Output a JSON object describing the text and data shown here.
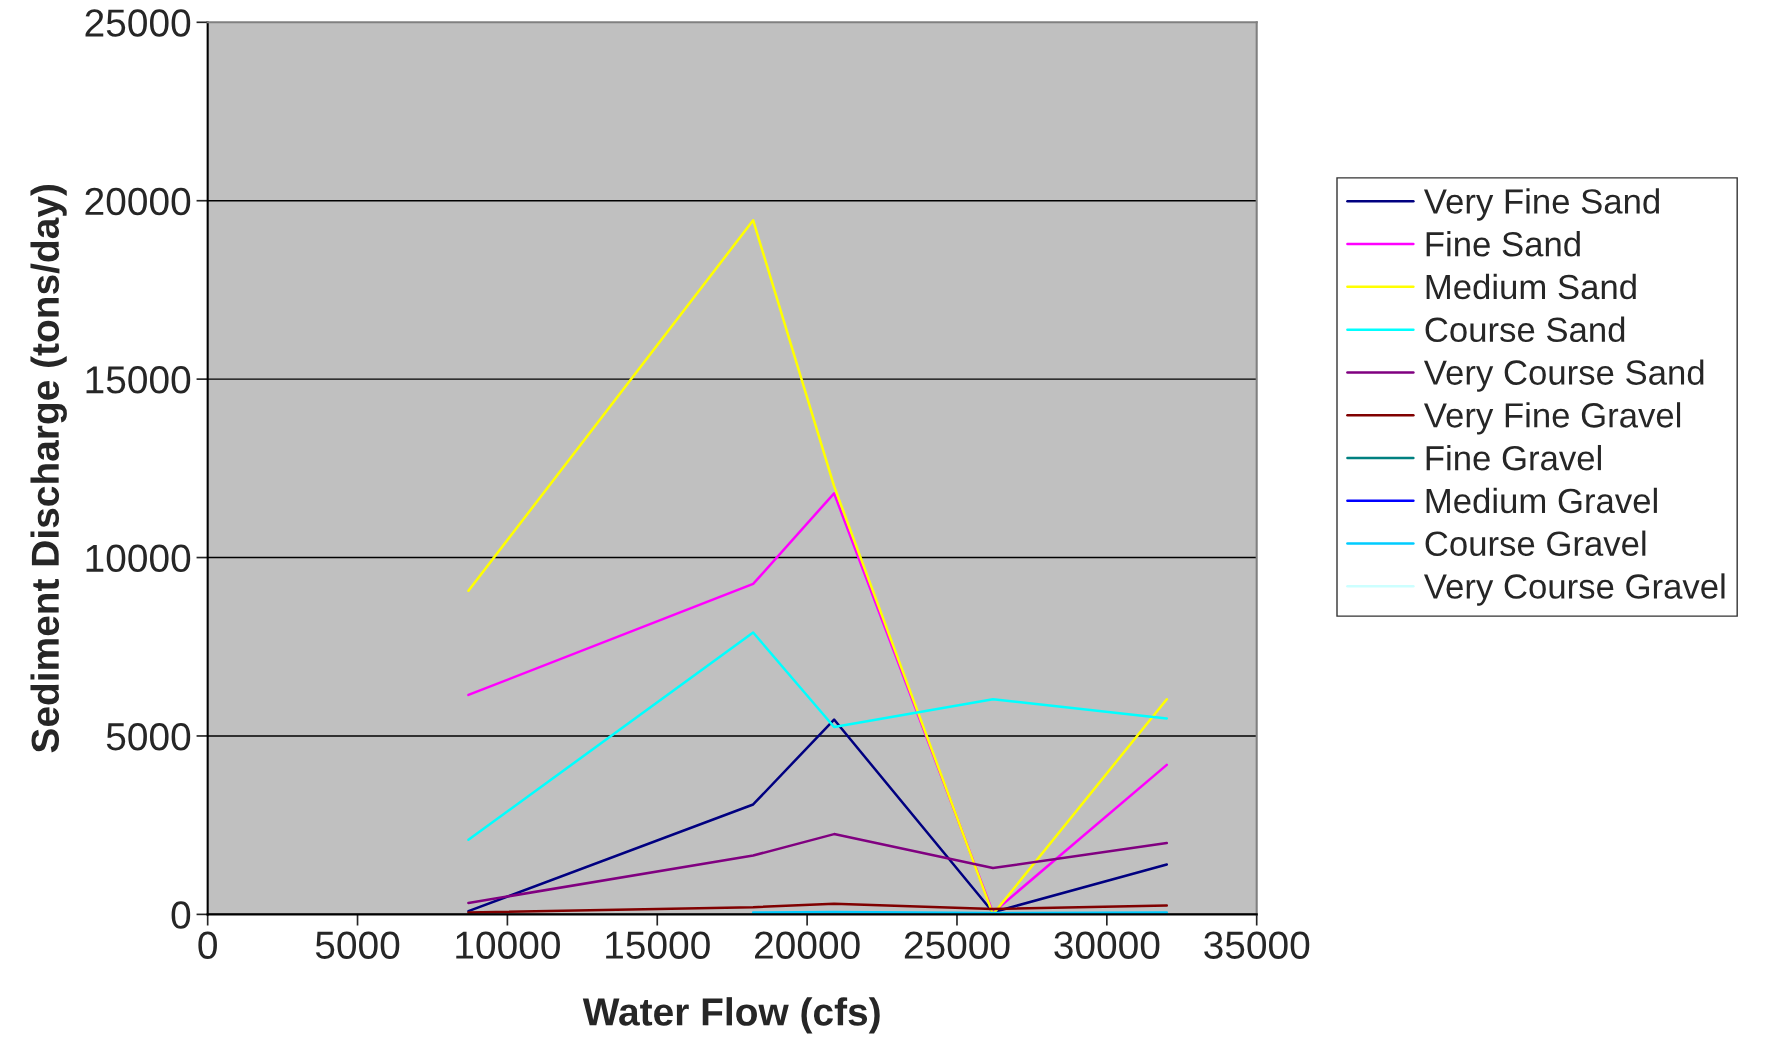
{
  "chart_data": {
    "type": "line",
    "xlabel": "Water Flow (cfs)",
    "ylabel": "Sediment Discharge (tons/day)",
    "x": [
      8700,
      18200,
      20900,
      26200,
      32000
    ],
    "xlim": [
      0,
      35000
    ],
    "xticks": [
      0,
      5000,
      10000,
      15000,
      20000,
      25000,
      30000,
      35000
    ],
    "ylim": [
      0,
      25000
    ],
    "yticks": [
      0,
      5000,
      10000,
      15000,
      20000,
      25000
    ],
    "grid": "y",
    "legend": "right",
    "marker": "none",
    "line_style": "solid",
    "series": [
      {
        "name": "Very Fine Sand",
        "color": "#000080",
        "values": [
          90,
          3080,
          5460,
          60,
          1400
        ]
      },
      {
        "name": "Fine Sand",
        "color": "#ff00ff",
        "values": [
          6150,
          9260,
          11800,
          50,
          4190
        ]
      },
      {
        "name": "Medium Sand",
        "color": "#ffff00",
        "values": [
          9070,
          19450,
          12000,
          0,
          6030
        ]
      },
      {
        "name": "Course Sand",
        "color": "#00ffff",
        "values": [
          2090,
          7900,
          5250,
          6030,
          5490
        ]
      },
      {
        "name": "Very Course Sand",
        "color": "#800080",
        "values": [
          320,
          1650,
          2250,
          1300,
          2000
        ]
      },
      {
        "name": "Very Fine Gravel",
        "color": "#800000",
        "values": [
          50,
          200,
          300,
          150,
          250
        ]
      },
      {
        "name": "Fine Gravel",
        "color": "#008080",
        "values": [
          null,
          null,
          null,
          null,
          null
        ]
      },
      {
        "name": "Medium Gravel",
        "color": "#0000ff",
        "values": [
          null,
          null,
          null,
          null,
          null
        ]
      },
      {
        "name": "Course Gravel",
        "color": "#00ccff",
        "values": [
          null,
          50,
          70,
          40,
          50
        ]
      },
      {
        "name": "Very Course Gravel",
        "color": "#ccffff",
        "values": [
          null,
          null,
          null,
          null,
          null
        ]
      }
    ]
  }
}
